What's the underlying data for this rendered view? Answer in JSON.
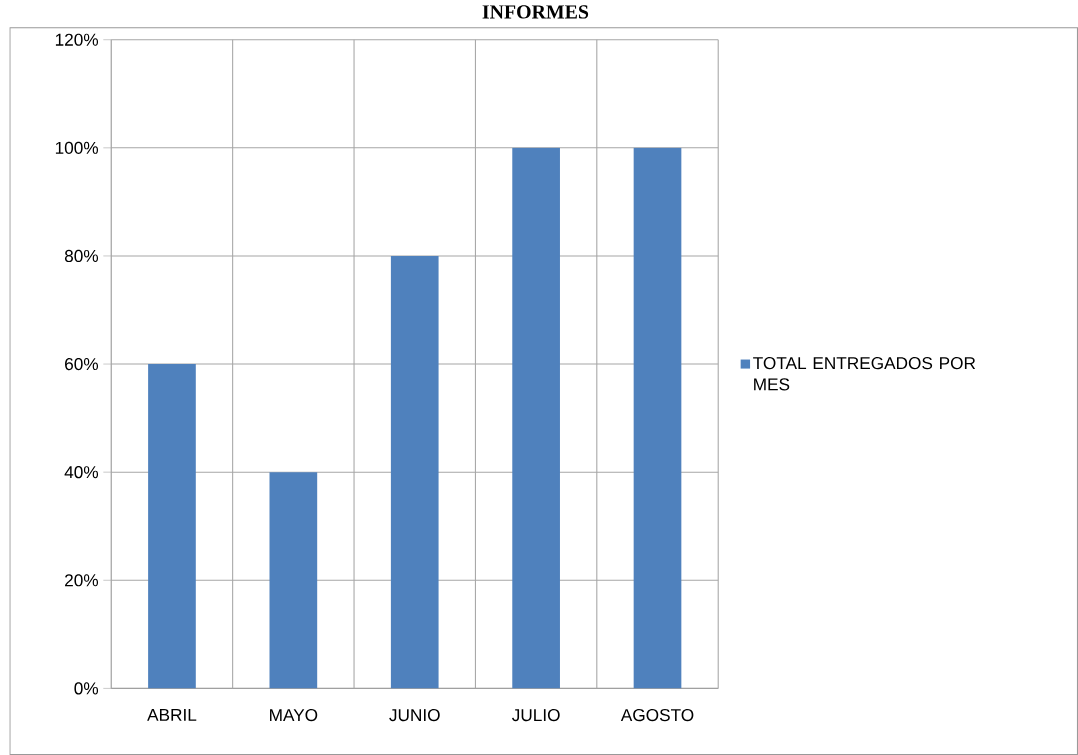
{
  "chart_data": {
    "type": "bar",
    "title": "INFORMES",
    "categories": [
      "ABRIL",
      "MAYO",
      "JUNIO",
      "JULIO",
      "AGOSTO"
    ],
    "series": [
      {
        "name": "TOTAL ENTREGADOS POR MES",
        "color": "#4f81bd",
        "values": [
          60,
          40,
          80,
          100,
          100
        ]
      }
    ],
    "ylim": [
      0,
      120
    ],
    "yticks": [
      {
        "value": 0,
        "label": "0%"
      },
      {
        "value": 20,
        "label": "20%"
      },
      {
        "value": 40,
        "label": "40%"
      },
      {
        "value": 60,
        "label": "60%"
      },
      {
        "value": 80,
        "label": "80%"
      },
      {
        "value": 100,
        "label": "100%"
      },
      {
        "value": 120,
        "label": "120%"
      }
    ],
    "grid": true,
    "legend": "right"
  }
}
